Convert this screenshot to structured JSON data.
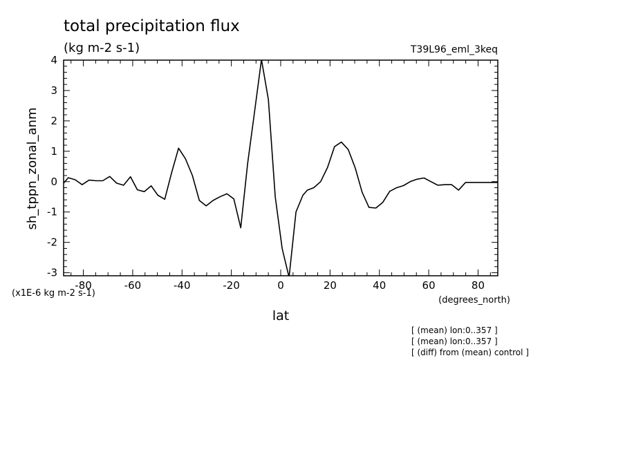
{
  "chart_data": {
    "type": "line",
    "title": "total precipitation flux",
    "units": "(kg m-2 s-1)",
    "run_label": "T39L96_eml_3keq",
    "ylabel": "sh_tppn_zonal_anm",
    "xlabel": "lat",
    "xlabel_units": "(degrees_north)",
    "y_scale_note": "(x1E-6 kg m-2 s-1)",
    "xlim": [
      -88,
      88
    ],
    "ylim": [
      -3.1,
      4.0
    ],
    "x_ticks": [
      -80,
      -60,
      -40,
      -20,
      0,
      20,
      40,
      60,
      80
    ],
    "x_tick_labels": [
      "-80",
      "-60",
      "-40",
      "-20",
      "0",
      "20",
      "40",
      "60",
      "80"
    ],
    "y_ticks": [
      -3,
      -2,
      -1,
      0,
      1,
      2,
      3,
      4
    ],
    "y_tick_labels": [
      "-3",
      "-2",
      "-1",
      "0",
      "1",
      "2",
      "3",
      "4"
    ],
    "grid": false,
    "series": [
      {
        "x": [
          -88,
          -86.1,
          -83.3,
          -80.5,
          -77.7,
          -74.9,
          -72.1,
          -69.3,
          -66.5,
          -63.7,
          -60.9,
          -58.1,
          -55.3,
          -52.5,
          -49.8,
          -47.0,
          -44.2,
          -41.4,
          -38.6,
          -35.8,
          -33.0,
          -30.2,
          -27.4,
          -24.6,
          -21.8,
          -19.0,
          -16.2,
          -13.4,
          -10.6,
          -7.8,
          -5.0,
          -2.2,
          0.6,
          3.4,
          6.2,
          9.0,
          10.8,
          13.4,
          16.2,
          19.0,
          21.8,
          24.6,
          27.4,
          30.2,
          33.0,
          35.8,
          38.6,
          41.4,
          44.2,
          47.0,
          49.8,
          52.5,
          55.3,
          58.1,
          60.9,
          63.7,
          66.5,
          69.3,
          72.1,
          74.9,
          77.7,
          80.5,
          83.3,
          86.1,
          88
        ],
        "y": [
          -0.05,
          0.13,
          0.06,
          -0.1,
          0.05,
          0.03,
          0.03,
          0.17,
          -0.05,
          -0.12,
          0.16,
          -0.27,
          -0.33,
          -0.14,
          -0.45,
          -0.58,
          0.3,
          1.1,
          0.75,
          0.2,
          -0.62,
          -0.8,
          -0.62,
          -0.5,
          -0.4,
          -0.57,
          -1.52,
          0.6,
          2.3,
          4.02,
          2.7,
          -0.5,
          -2.2,
          -3.15,
          -1.0,
          -0.45,
          -0.28,
          -0.2,
          0.0,
          0.47,
          1.15,
          1.3,
          1.05,
          0.45,
          -0.35,
          -0.85,
          -0.87,
          -0.68,
          -0.32,
          -0.2,
          -0.13,
          0.0,
          0.08,
          0.12,
          0.0,
          -0.12,
          -0.1,
          -0.1,
          -0.28,
          -0.03,
          -0.03,
          -0.03,
          -0.03,
          -0.03,
          -0.03
        ]
      }
    ]
  },
  "notes": [
    "[ (mean) lon:0..357 ]",
    "[ (mean) lon:0..357 ]",
    "[ (diff) from (mean) control ]"
  ]
}
